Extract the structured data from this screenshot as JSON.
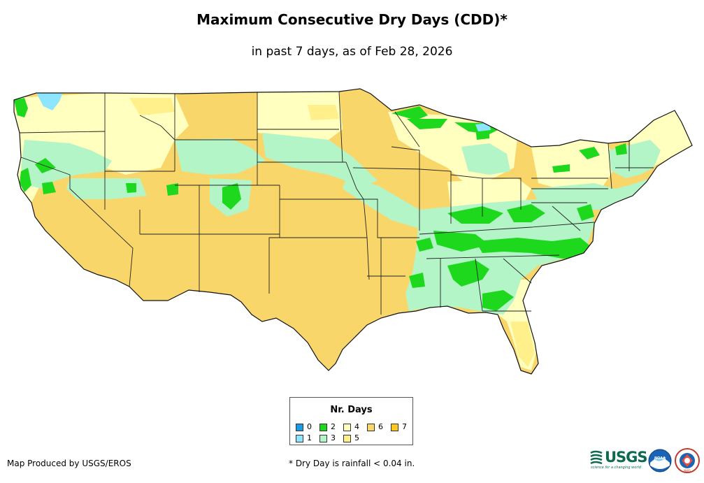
{
  "header": {
    "title": "Maximum Consecutive Dry Days (CDD)*",
    "subtitle": "in past 7 days, as of Feb 28, 2026"
  },
  "legend": {
    "title": "Nr. Days",
    "items": [
      {
        "label": "0",
        "color": "#1a9be6"
      },
      {
        "label": "1",
        "color": "#8ee5ff"
      },
      {
        "label": "2",
        "color": "#1ed81e"
      },
      {
        "label": "3",
        "color": "#b4f5c8"
      },
      {
        "label": "4",
        "color": "#ffffc0"
      },
      {
        "label": "5",
        "color": "#fff08c"
      },
      {
        "label": "6",
        "color": "#f8d66a"
      },
      {
        "label": "7",
        "color": "#ffc81e"
      }
    ]
  },
  "footer": {
    "credit": "Map Produced by USGS/EROS",
    "note": "* Dry Day is rainfall < 0.04 in."
  },
  "logos": {
    "usgs": "USGS",
    "usgs_tagline": "science for a changing world",
    "noaa": "NOAA",
    "nws": "NWS"
  }
}
